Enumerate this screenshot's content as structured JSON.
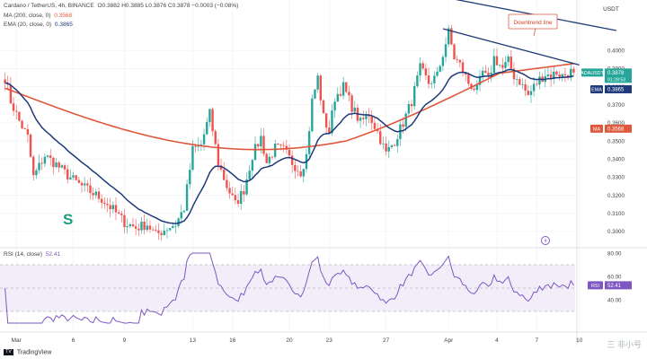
{
  "header": {
    "pair": "Cardano / TetherUS, 4h, BINANCE",
    "ohlc": "O0.3882 H0.3885 L0.3876 C0.3878 −0.0003 (−0.08%)",
    "ma_line": "MA (200, close, 0)",
    "ma_value": "0.3568",
    "ema_line": "EMA (20, close, 0)",
    "ema_value": "0.3865",
    "rsi_line": "RSI (14, close)",
    "rsi_value": "52.41"
  },
  "footer": {
    "logo": "TV",
    "brand": "TradingView"
  },
  "watermark": "三 非小号",
  "colors": {
    "up": "#26a69a",
    "down": "#ef5350",
    "ema": "#1e3a7b",
    "ma": "#e0573b",
    "rsi": "#7e57c2",
    "trend": "#1f3c78",
    "bg": "#ffffff",
    "grid": "#eef0f3"
  },
  "chart_data": {
    "type": "candlestick",
    "title": "Cardano / TetherUS, 4h, BINANCE",
    "axis_currency": "USDT",
    "price_range": [
      0.292,
      0.414
    ],
    "price_ticks": [
      "0.4000",
      "0.3900",
      "0.3800",
      "0.3700",
      "0.3600",
      "0.3500",
      "0.3400",
      "0.3300",
      "0.3200",
      "0.3100",
      "0.3000"
    ],
    "x_ticks": [
      {
        "label": "Mar",
        "bar": 4
      },
      {
        "label": "6",
        "bar": 24
      },
      {
        "label": "9",
        "bar": 42
      },
      {
        "label": "13",
        "bar": 66
      },
      {
        "label": "16",
        "bar": 80
      },
      {
        "label": "20",
        "bar": 100
      },
      {
        "label": "23",
        "bar": 114
      },
      {
        "label": "27",
        "bar": 134
      },
      {
        "label": "Apr",
        "bar": 156
      },
      {
        "label": "4",
        "bar": 173
      },
      {
        "label": "7",
        "bar": 187
      },
      {
        "label": "10",
        "bar": 202
      }
    ],
    "price_labels": [
      {
        "label": "ADAUSDT",
        "value": "0.3878",
        "sub": "01:28:53",
        "price": 0.3878,
        "color": "#26a69a"
      },
      {
        "label": "EMA",
        "value": "0.3865",
        "price": 0.3865,
        "color": "#1e3a7b"
      },
      {
        "label": "MA",
        "value": "0.3568",
        "price": 0.3568,
        "color": "#e0573b"
      }
    ],
    "annotations": [
      {
        "text": "Downtrend line",
        "type": "callout"
      },
      {
        "text": "S",
        "type": "symbol"
      }
    ],
    "anchors": [
      [
        0,
        0.385
      ],
      [
        2,
        0.372
      ],
      [
        5,
        0.361
      ],
      [
        8,
        0.352
      ],
      [
        10,
        0.33
      ],
      [
        14,
        0.342
      ],
      [
        18,
        0.337
      ],
      [
        22,
        0.331
      ],
      [
        26,
        0.326
      ],
      [
        30,
        0.322
      ],
      [
        34,
        0.318
      ],
      [
        38,
        0.312
      ],
      [
        42,
        0.305
      ],
      [
        46,
        0.302
      ],
      [
        50,
        0.304
      ],
      [
        53,
        0.298
      ],
      [
        57,
        0.302
      ],
      [
        60,
        0.304
      ],
      [
        63,
        0.313
      ],
      [
        66,
        0.345
      ],
      [
        69,
        0.348
      ],
      [
        72,
        0.365
      ],
      [
        75,
        0.338
      ],
      [
        78,
        0.325
      ],
      [
        81,
        0.315
      ],
      [
        84,
        0.323
      ],
      [
        87,
        0.342
      ],
      [
        90,
        0.352
      ],
      [
        92,
        0.338
      ],
      [
        95,
        0.346
      ],
      [
        98,
        0.345
      ],
      [
        101,
        0.338
      ],
      [
        104,
        0.333
      ],
      [
        106,
        0.342
      ],
      [
        108,
        0.372
      ],
      [
        110,
        0.385
      ],
      [
        112,
        0.363
      ],
      [
        114,
        0.355
      ],
      [
        116,
        0.374
      ],
      [
        119,
        0.38
      ],
      [
        122,
        0.369
      ],
      [
        125,
        0.36
      ],
      [
        128,
        0.365
      ],
      [
        131,
        0.355
      ],
      [
        134,
        0.343
      ],
      [
        137,
        0.35
      ],
      [
        140,
        0.36
      ],
      [
        143,
        0.372
      ],
      [
        146,
        0.39
      ],
      [
        149,
        0.382
      ],
      [
        152,
        0.386
      ],
      [
        154,
        0.398
      ],
      [
        156,
        0.41
      ],
      [
        158,
        0.396
      ],
      [
        160,
        0.392
      ],
      [
        163,
        0.382
      ],
      [
        166,
        0.378
      ],
      [
        168,
        0.388
      ],
      [
        170,
        0.383
      ],
      [
        172,
        0.396
      ],
      [
        175,
        0.39
      ],
      [
        177,
        0.394
      ],
      [
        179,
        0.386
      ],
      [
        181,
        0.383
      ],
      [
        184,
        0.375
      ],
      [
        186,
        0.38
      ],
      [
        188,
        0.384
      ],
      [
        190,
        0.387
      ],
      [
        192,
        0.386
      ],
      [
        194,
        0.388
      ],
      [
        196,
        0.386
      ],
      [
        199,
        0.3882
      ],
      [
        200,
        0.3878
      ]
    ],
    "ma200_range": [
      0.3792,
      0.3568
    ],
    "rsi": {
      "range": [
        20,
        80
      ],
      "ticks": [
        "80.00",
        "60.00",
        "40.00"
      ],
      "upper": 70,
      "lower": 30,
      "last": 52.41
    },
    "downtrend_line": {
      "from_bar": 154,
      "from_price": 0.412,
      "to_bar": 202,
      "to_price": 0.392
    },
    "top_line": {
      "from_bar": 100,
      "from_price": 0.446,
      "to_bar": 215,
      "to_price": 0.411
    }
  }
}
